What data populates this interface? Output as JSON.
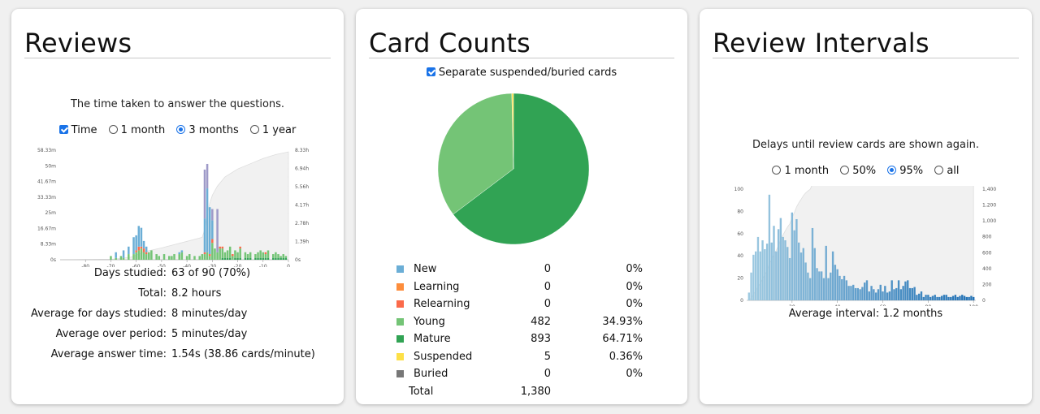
{
  "reviews": {
    "title": "Reviews",
    "subtitle": "The time taken to answer the questions.",
    "options": [
      {
        "label": "Time",
        "kind": "checkbox",
        "checked": true
      },
      {
        "label": "1 month",
        "kind": "radio",
        "checked": false
      },
      {
        "label": "3 months",
        "kind": "radio",
        "checked": true
      },
      {
        "label": "1 year",
        "kind": "radio",
        "checked": false
      }
    ],
    "stats": [
      {
        "label": "Days studied:",
        "value": "63 of 90 (70%)"
      },
      {
        "label": "Total:",
        "value": "8.2 hours"
      },
      {
        "label": "Average for days studied:",
        "value": "8 minutes/day"
      },
      {
        "label": "Average over period:",
        "value": "5 minutes/day"
      },
      {
        "label": "Average answer time:",
        "value": "1.54s (38.86 cards/minute)"
      }
    ]
  },
  "card_counts": {
    "title": "Card Counts",
    "toggle_label": "Separate suspended/buried cards",
    "toggle_checked": true,
    "legend": [
      {
        "label": "New",
        "count": "0",
        "percent": "0%",
        "color": "#6baed6"
      },
      {
        "label": "Learning",
        "count": "0",
        "percent": "0%",
        "color": "#fd8d3c"
      },
      {
        "label": "Relearning",
        "count": "0",
        "percent": "0%",
        "color": "#fb6a4a"
      },
      {
        "label": "Young",
        "count": "482",
        "percent": "34.93%",
        "color": "#74c476"
      },
      {
        "label": "Mature",
        "count": "893",
        "percent": "64.71%",
        "color": "#31a354"
      },
      {
        "label": "Suspended",
        "count": "5",
        "percent": "0.36%",
        "color": "#fde047"
      },
      {
        "label": "Buried",
        "count": "0",
        "percent": "0%",
        "color": "#777777"
      }
    ],
    "total_label": "Total",
    "total_value": "1,380"
  },
  "review_intervals": {
    "title": "Review Intervals",
    "subtitle": "Delays until review cards are shown again.",
    "options": [
      {
        "label": "1 month",
        "checked": false
      },
      {
        "label": "50%",
        "checked": false
      },
      {
        "label": "95%",
        "checked": true
      },
      {
        "label": "all",
        "checked": false
      }
    ],
    "average_label": "Average interval:",
    "average_value": "1.2 months"
  },
  "chart_data": [
    {
      "type": "bar",
      "name": "reviews-time",
      "x_ticks": [
        -80,
        -70,
        -60,
        -50,
        -40,
        -30,
        -20,
        -10,
        0
      ],
      "y_left_ticks": [
        "0s",
        "8.33m",
        "16.67m",
        "25m",
        "33.33m",
        "41.67m",
        "50m",
        "58.33m"
      ],
      "y_left_max_minutes": 58.33,
      "y_right_ticks": [
        "0s",
        "1.39h",
        "2.78h",
        "4.17h",
        "5.56h",
        "6.94h",
        "8.33h"
      ],
      "xlim": [
        -90,
        0
      ],
      "series_colors": {
        "mature": "#31a354",
        "young": "#74c476",
        "relearn": "#fb6a4a",
        "learn": "#fd8d3c",
        "new": "#6baed6",
        "filtered": "#9e9ac8"
      },
      "days": [
        {
          "x": -70,
          "mature": 0,
          "young": 2,
          "relearn": 0,
          "learn": 0,
          "new": 0,
          "filtered": 0
        },
        {
          "x": -68,
          "mature": 0,
          "young": 1,
          "relearn": 0,
          "learn": 0,
          "new": 3,
          "filtered": 0
        },
        {
          "x": -66,
          "mature": 0,
          "young": 2,
          "relearn": 0,
          "learn": 0,
          "new": 0,
          "filtered": 0
        },
        {
          "x": -65,
          "mature": 0,
          "young": 1,
          "relearn": 0,
          "learn": 0,
          "new": 4,
          "filtered": 0
        },
        {
          "x": -63,
          "mature": 0,
          "young": 3,
          "relearn": 0,
          "learn": 0,
          "new": 4,
          "filtered": 0
        },
        {
          "x": -61,
          "mature": 0,
          "young": 3,
          "relearn": 0,
          "learn": 0,
          "new": 9,
          "filtered": 0
        },
        {
          "x": -60,
          "mature": 0,
          "young": 4,
          "relearn": 1,
          "learn": 0,
          "new": 8,
          "filtered": 0
        },
        {
          "x": -59,
          "mature": 0,
          "young": 5,
          "relearn": 2,
          "learn": 0,
          "new": 11,
          "filtered": 0
        },
        {
          "x": -58,
          "mature": 0,
          "young": 6,
          "relearn": 1,
          "learn": 0,
          "new": 10,
          "filtered": 0
        },
        {
          "x": -57,
          "mature": 0,
          "young": 4,
          "relearn": 2,
          "learn": 0,
          "new": 4,
          "filtered": 0
        },
        {
          "x": -56,
          "mature": 0,
          "young": 3,
          "relearn": 1,
          "learn": 0,
          "new": 3,
          "filtered": 0
        },
        {
          "x": -55,
          "mature": 0,
          "young": 4,
          "relearn": 0,
          "learn": 0,
          "new": 0,
          "filtered": 0
        },
        {
          "x": -54,
          "mature": 0,
          "young": 5,
          "relearn": 0,
          "learn": 0,
          "new": 0,
          "filtered": 0
        },
        {
          "x": -52,
          "mature": 0,
          "young": 3,
          "relearn": 0,
          "learn": 0,
          "new": 0,
          "filtered": 0
        },
        {
          "x": -51,
          "mature": 0,
          "young": 2,
          "relearn": 0,
          "learn": 0,
          "new": 0,
          "filtered": 0
        },
        {
          "x": -49,
          "mature": 0,
          "young": 3,
          "relearn": 0,
          "learn": 0,
          "new": 0,
          "filtered": 0
        },
        {
          "x": -47,
          "mature": 0,
          "young": 2,
          "relearn": 0,
          "learn": 0,
          "new": 0,
          "filtered": 0
        },
        {
          "x": -46,
          "mature": 0,
          "young": 2,
          "relearn": 0,
          "learn": 0,
          "new": 0,
          "filtered": 0
        },
        {
          "x": -45,
          "mature": 0,
          "young": 3,
          "relearn": 0,
          "learn": 0,
          "new": 0,
          "filtered": 0
        },
        {
          "x": -43,
          "mature": 0,
          "young": 3,
          "relearn": 0,
          "learn": 0,
          "new": 1,
          "filtered": 0
        },
        {
          "x": -42,
          "mature": 0,
          "young": 4,
          "relearn": 0,
          "learn": 0,
          "new": 1,
          "filtered": 0
        },
        {
          "x": -40,
          "mature": 0,
          "young": 2,
          "relearn": 0,
          "learn": 0,
          "new": 0,
          "filtered": 0
        },
        {
          "x": -39,
          "mature": 0,
          "young": 3,
          "relearn": 0,
          "learn": 0,
          "new": 0,
          "filtered": 0
        },
        {
          "x": -37,
          "mature": 0,
          "young": 2,
          "relearn": 0,
          "learn": 0,
          "new": 0,
          "filtered": 0
        },
        {
          "x": -35,
          "mature": 0,
          "young": 2,
          "relearn": 0,
          "learn": 0,
          "new": 0,
          "filtered": 0
        },
        {
          "x": -34,
          "mature": 0,
          "young": 3,
          "relearn": 0,
          "learn": 0,
          "new": 0,
          "filtered": 0
        },
        {
          "x": -33,
          "mature": 0,
          "young": 3,
          "relearn": 1,
          "learn": 0,
          "new": 18,
          "filtered": 26
        },
        {
          "x": -32,
          "mature": 0,
          "young": 4,
          "relearn": 0,
          "learn": 0,
          "new": 34,
          "filtered": 13
        },
        {
          "x": -31,
          "mature": 0,
          "young": 2,
          "relearn": 1,
          "learn": 0,
          "new": 25,
          "filtered": 0
        },
        {
          "x": -30,
          "mature": 0,
          "young": 9,
          "relearn": 2,
          "learn": 0,
          "new": 10,
          "filtered": 6
        },
        {
          "x": -29,
          "mature": 0,
          "young": 6,
          "relearn": 0,
          "learn": 0,
          "new": 0,
          "filtered": 0
        },
        {
          "x": -28,
          "mature": 0,
          "young": 4,
          "relearn": 0,
          "learn": 0,
          "new": 0,
          "filtered": 23
        },
        {
          "x": -27,
          "mature": 0,
          "young": 6,
          "relearn": 1,
          "learn": 0,
          "new": 0,
          "filtered": 0
        },
        {
          "x": -26,
          "mature": 1,
          "young": 5,
          "relearn": 1,
          "learn": 0,
          "new": 0,
          "filtered": 0
        },
        {
          "x": -25,
          "mature": 1,
          "young": 3,
          "relearn": 0,
          "learn": 0,
          "new": 0,
          "filtered": 0
        },
        {
          "x": -24,
          "mature": 1,
          "young": 4,
          "relearn": 0,
          "learn": 0,
          "new": 0,
          "filtered": 0
        },
        {
          "x": -23,
          "mature": 1,
          "young": 6,
          "relearn": 0,
          "learn": 0,
          "new": 0,
          "filtered": 0
        },
        {
          "x": -22,
          "mature": 0,
          "young": 2,
          "relearn": 1,
          "learn": 0,
          "new": 0,
          "filtered": 0
        },
        {
          "x": -21,
          "mature": 1,
          "young": 4,
          "relearn": 0,
          "learn": 0,
          "new": 0,
          "filtered": 0
        },
        {
          "x": -20,
          "mature": 1,
          "young": 3,
          "relearn": 0,
          "learn": 0,
          "new": 0,
          "filtered": 0
        },
        {
          "x": -19,
          "mature": 1,
          "young": 5,
          "relearn": 1,
          "learn": 0,
          "new": 0,
          "filtered": 0
        },
        {
          "x": -17,
          "mature": 1,
          "young": 3,
          "relearn": 0,
          "learn": 0,
          "new": 0,
          "filtered": 0
        },
        {
          "x": -16,
          "mature": 1,
          "young": 2,
          "relearn": 0,
          "learn": 0,
          "new": 0,
          "filtered": 0
        },
        {
          "x": -15,
          "mature": 1,
          "young": 3,
          "relearn": 0,
          "learn": 0,
          "new": 0,
          "filtered": 0
        },
        {
          "x": -13,
          "mature": 1,
          "young": 2,
          "relearn": 0,
          "learn": 0,
          "new": 0,
          "filtered": 0
        },
        {
          "x": -12,
          "mature": 1,
          "young": 3,
          "relearn": 0,
          "learn": 0,
          "new": 0,
          "filtered": 0
        },
        {
          "x": -11,
          "mature": 1,
          "young": 4,
          "relearn": 0,
          "learn": 0,
          "new": 0,
          "filtered": 0
        },
        {
          "x": -10,
          "mature": 1,
          "young": 3,
          "relearn": 0,
          "learn": 0,
          "new": 0,
          "filtered": 0
        },
        {
          "x": -9,
          "mature": 1,
          "young": 2,
          "relearn": 1,
          "learn": 0,
          "new": 0,
          "filtered": 0
        },
        {
          "x": -8,
          "mature": 1,
          "young": 4,
          "relearn": 0,
          "learn": 0,
          "new": 0,
          "filtered": 0
        },
        {
          "x": -6,
          "mature": 1,
          "young": 2,
          "relearn": 0,
          "learn": 0,
          "new": 0,
          "filtered": 0
        },
        {
          "x": -5,
          "mature": 1,
          "young": 3,
          "relearn": 0,
          "learn": 0,
          "new": 0,
          "filtered": 0
        },
        {
          "x": -4,
          "mature": 1,
          "young": 2,
          "relearn": 0,
          "learn": 0,
          "new": 0,
          "filtered": 0
        },
        {
          "x": -3,
          "mature": 1,
          "young": 1,
          "relearn": 0,
          "learn": 0,
          "new": 0,
          "filtered": 0
        },
        {
          "x": -2,
          "mature": 1,
          "young": 2,
          "relearn": 0,
          "learn": 0,
          "new": 0,
          "filtered": 0
        },
        {
          "x": -1,
          "mature": 1,
          "young": 1,
          "relearn": 0,
          "learn": 0,
          "new": 0,
          "filtered": 0
        }
      ],
      "cumulative_hours": [
        {
          "x": -90,
          "y": 0
        },
        {
          "x": -70,
          "y": 0.03
        },
        {
          "x": -62,
          "y": 0.2
        },
        {
          "x": -57,
          "y": 0.6
        },
        {
          "x": -50,
          "y": 0.9
        },
        {
          "x": -40,
          "y": 1.4
        },
        {
          "x": -34,
          "y": 1.7
        },
        {
          "x": -33,
          "y": 2.3
        },
        {
          "x": -32,
          "y": 3.5
        },
        {
          "x": -31,
          "y": 4.3
        },
        {
          "x": -30,
          "y": 4.9
        },
        {
          "x": -28,
          "y": 5.6
        },
        {
          "x": -25,
          "y": 6.3
        },
        {
          "x": -20,
          "y": 6.9
        },
        {
          "x": -15,
          "y": 7.3
        },
        {
          "x": -10,
          "y": 7.7
        },
        {
          "x": -5,
          "y": 8.0
        },
        {
          "x": 0,
          "y": 8.2
        }
      ]
    },
    {
      "type": "pie",
      "name": "card-counts",
      "slices": [
        {
          "label": "Young",
          "value": 482
        },
        {
          "label": "Mature",
          "value": 893
        },
        {
          "label": "Suspended",
          "value": 5
        }
      ]
    },
    {
      "type": "bar",
      "name": "review-intervals",
      "x_ticks": [
        20,
        40,
        60,
        80,
        100
      ],
      "y_left_ticks": [
        0,
        20,
        40,
        60,
        80,
        100
      ],
      "y_right_ticks": [
        "0",
        "200",
        "400",
        "600",
        "800",
        "1,000",
        "1,200",
        "1,400"
      ],
      "xlim": [
        0,
        101
      ],
      "ylim": [
        0,
        100
      ],
      "y_right_max": 1400,
      "cumulative_total": 1375,
      "bar_color_light": "#9ecae1",
      "bar_color_dark": "#2171b5",
      "values": [
        7,
        25,
        41,
        44,
        57,
        44,
        54,
        46,
        51,
        95,
        52,
        67,
        44,
        64,
        74,
        57,
        54,
        48,
        38,
        79,
        63,
        73,
        52,
        43,
        47,
        34,
        25,
        20,
        65,
        47,
        29,
        26,
        26,
        20,
        49,
        20,
        25,
        44,
        32,
        28,
        22,
        19,
        22,
        18,
        13,
        13,
        14,
        11,
        11,
        10,
        12,
        16,
        18,
        8,
        13,
        10,
        7,
        10,
        14,
        8,
        13,
        7,
        8,
        18,
        10,
        11,
        18,
        10,
        13,
        17,
        18,
        11,
        11,
        12,
        5,
        6,
        8,
        3,
        5,
        5,
        3,
        4,
        5,
        3,
        3,
        4,
        5,
        5,
        3,
        3,
        4,
        5,
        3,
        4,
        5,
        4,
        3,
        3,
        4,
        3
      ]
    }
  ]
}
